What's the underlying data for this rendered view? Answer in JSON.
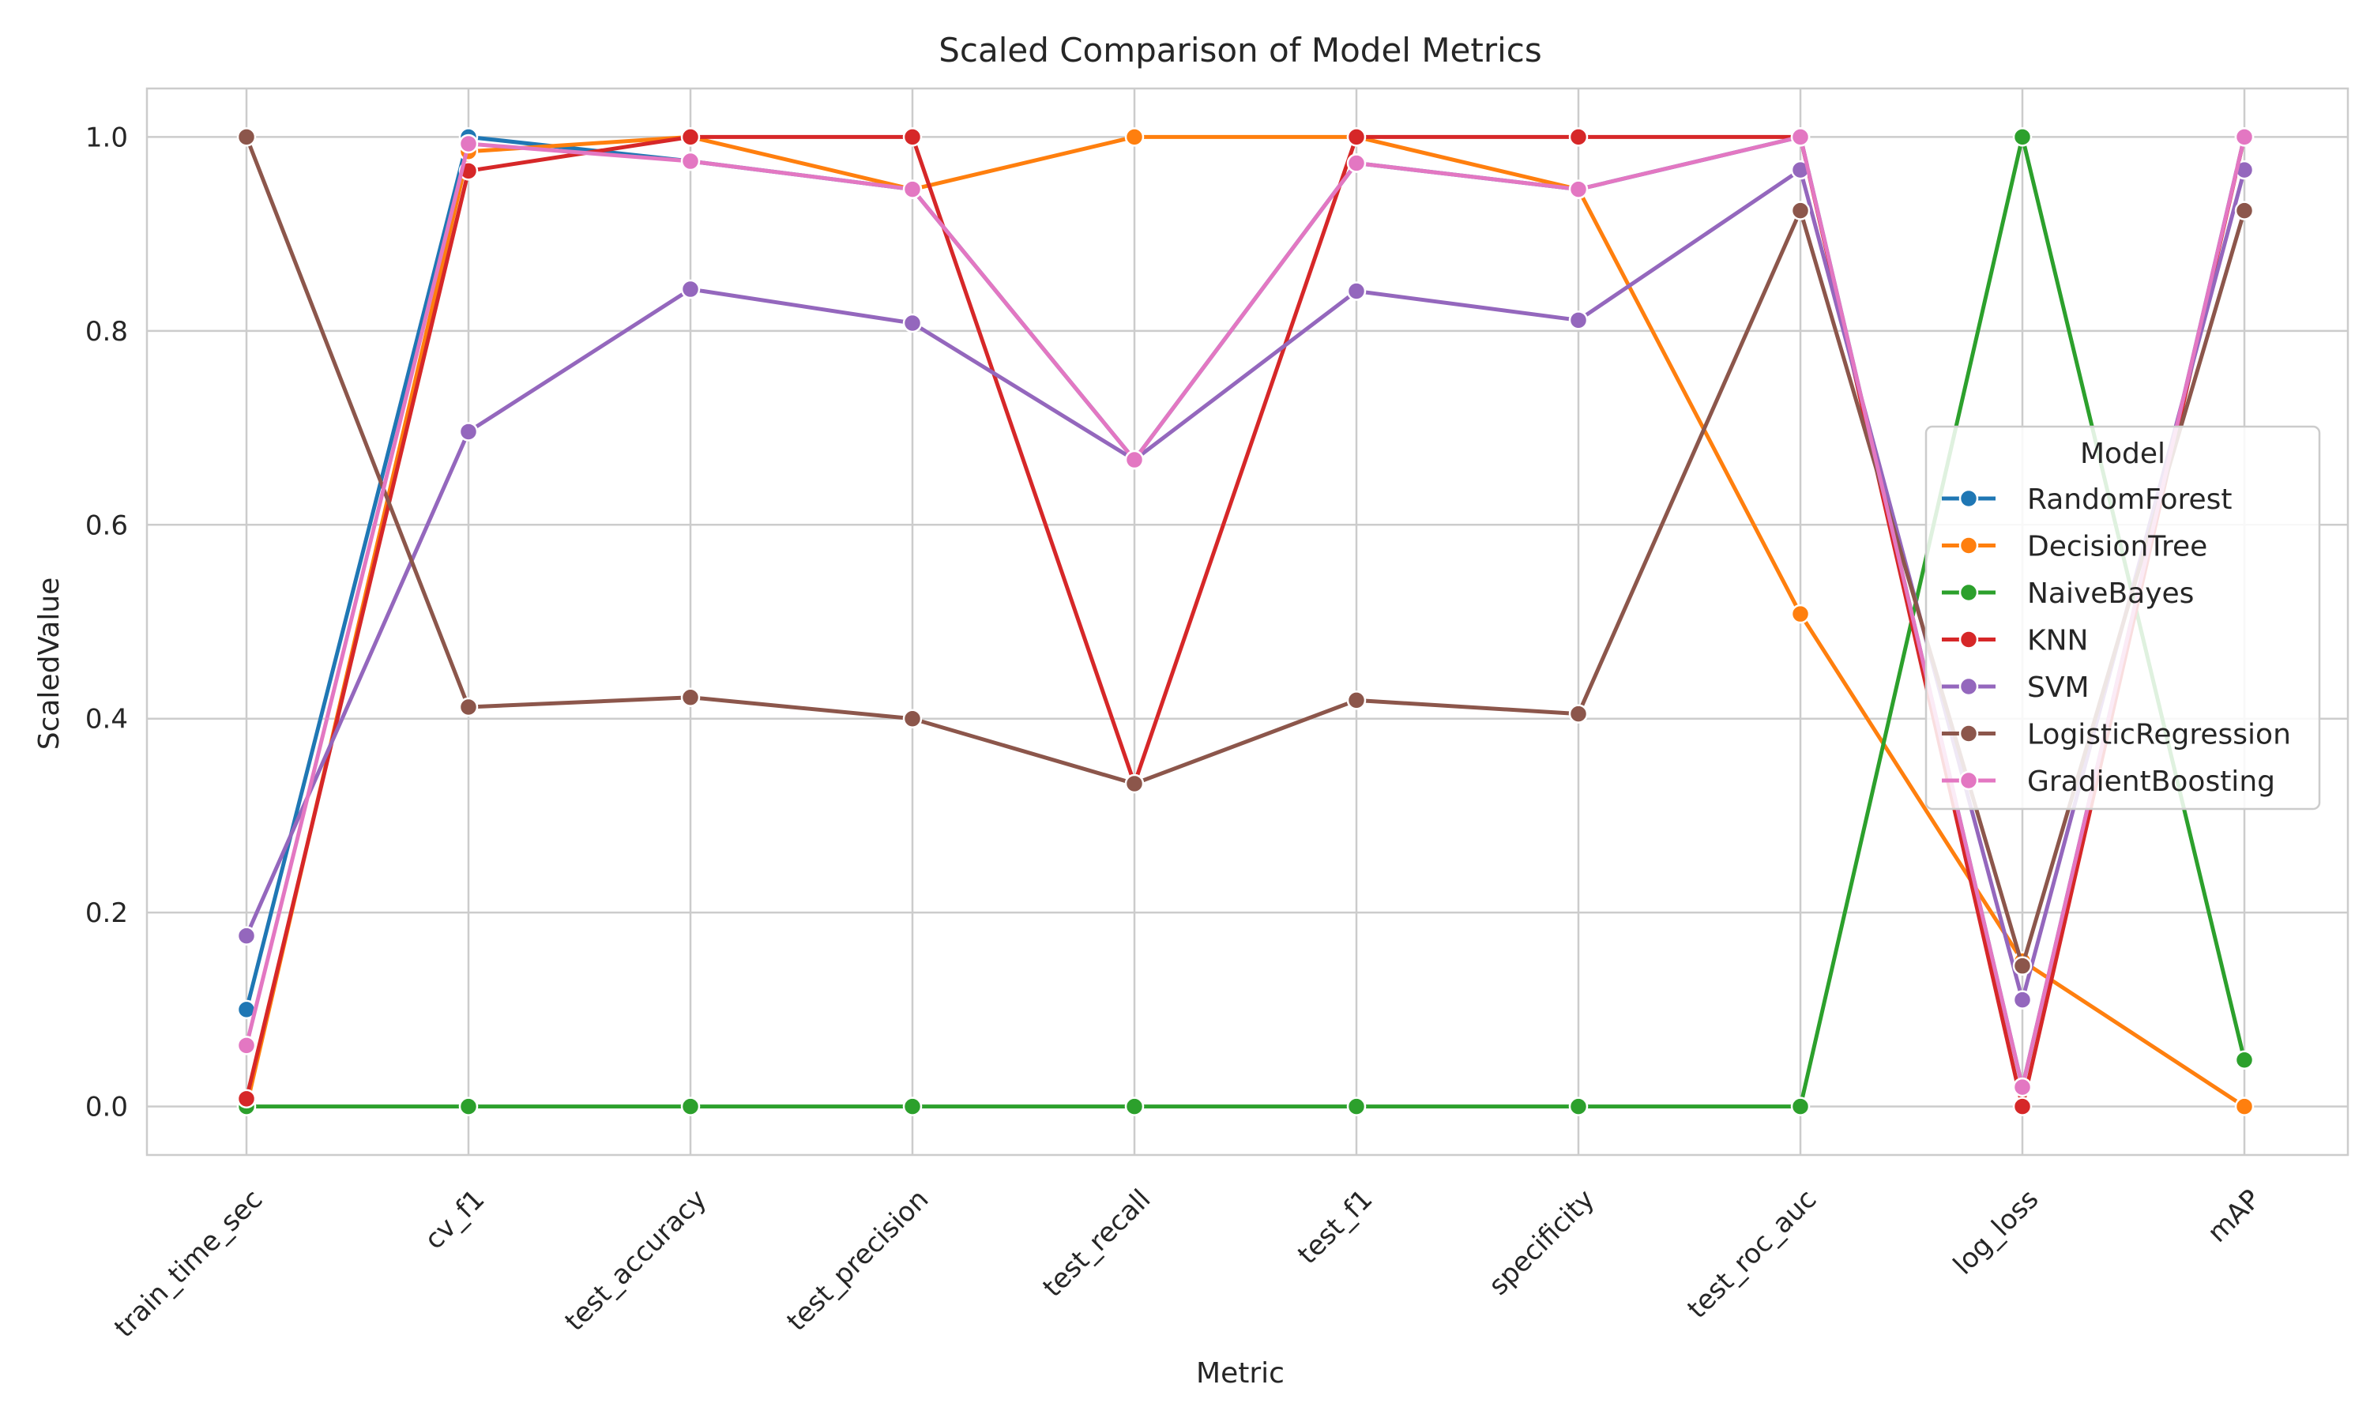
{
  "chart_data": {
    "type": "line",
    "title": "Scaled Comparison of Model Metrics",
    "xlabel": "Metric",
    "ylabel": "ScaledValue",
    "ylim": [
      -0.05,
      1.05
    ],
    "yticks": [
      "0.0",
      "0.2",
      "0.4",
      "0.6",
      "0.8",
      "1.0"
    ],
    "grid": true,
    "legend_title": "Model",
    "legend_position": "center-right",
    "categories": [
      "train_time_sec",
      "cv_f1",
      "test_accuracy",
      "test_precision",
      "test_recall",
      "test_f1",
      "specificity",
      "test_roc_auc",
      "log_loss",
      "mAP"
    ],
    "series": [
      {
        "name": "RandomForest",
        "color": "#1f77b4",
        "values": [
          0.1,
          1.0,
          0.975,
          0.946,
          0.667,
          0.973,
          0.946,
          1.0,
          0.02,
          1.0
        ]
      },
      {
        "name": "DecisionTree",
        "color": "#ff7f0e",
        "values": [
          0.0,
          0.985,
          1.0,
          0.946,
          1.0,
          1.0,
          0.946,
          0.508,
          0.15,
          0.0
        ]
      },
      {
        "name": "NaiveBayes",
        "color": "#2ca02c",
        "values": [
          0.0,
          0.0,
          0.0,
          0.0,
          0.0,
          0.0,
          0.0,
          0.0,
          1.0,
          0.048
        ]
      },
      {
        "name": "KNN",
        "color": "#d62728",
        "values": [
          0.008,
          0.965,
          1.0,
          1.0,
          0.333,
          1.0,
          1.0,
          1.0,
          0.0,
          1.0
        ]
      },
      {
        "name": "SVM",
        "color": "#9467bd",
        "values": [
          0.176,
          0.696,
          0.843,
          0.808,
          0.667,
          0.841,
          0.811,
          0.966,
          0.11,
          0.966
        ]
      },
      {
        "name": "LogisticRegression",
        "color": "#8c564b",
        "values": [
          1.0,
          0.412,
          0.422,
          0.4,
          0.333,
          0.419,
          0.405,
          0.924,
          0.145,
          0.924
        ]
      },
      {
        "name": "GradientBoosting",
        "color": "#e377c2",
        "values": [
          0.063,
          0.993,
          0.975,
          0.946,
          0.667,
          0.973,
          0.946,
          1.0,
          0.02,
          1.0
        ]
      }
    ]
  }
}
